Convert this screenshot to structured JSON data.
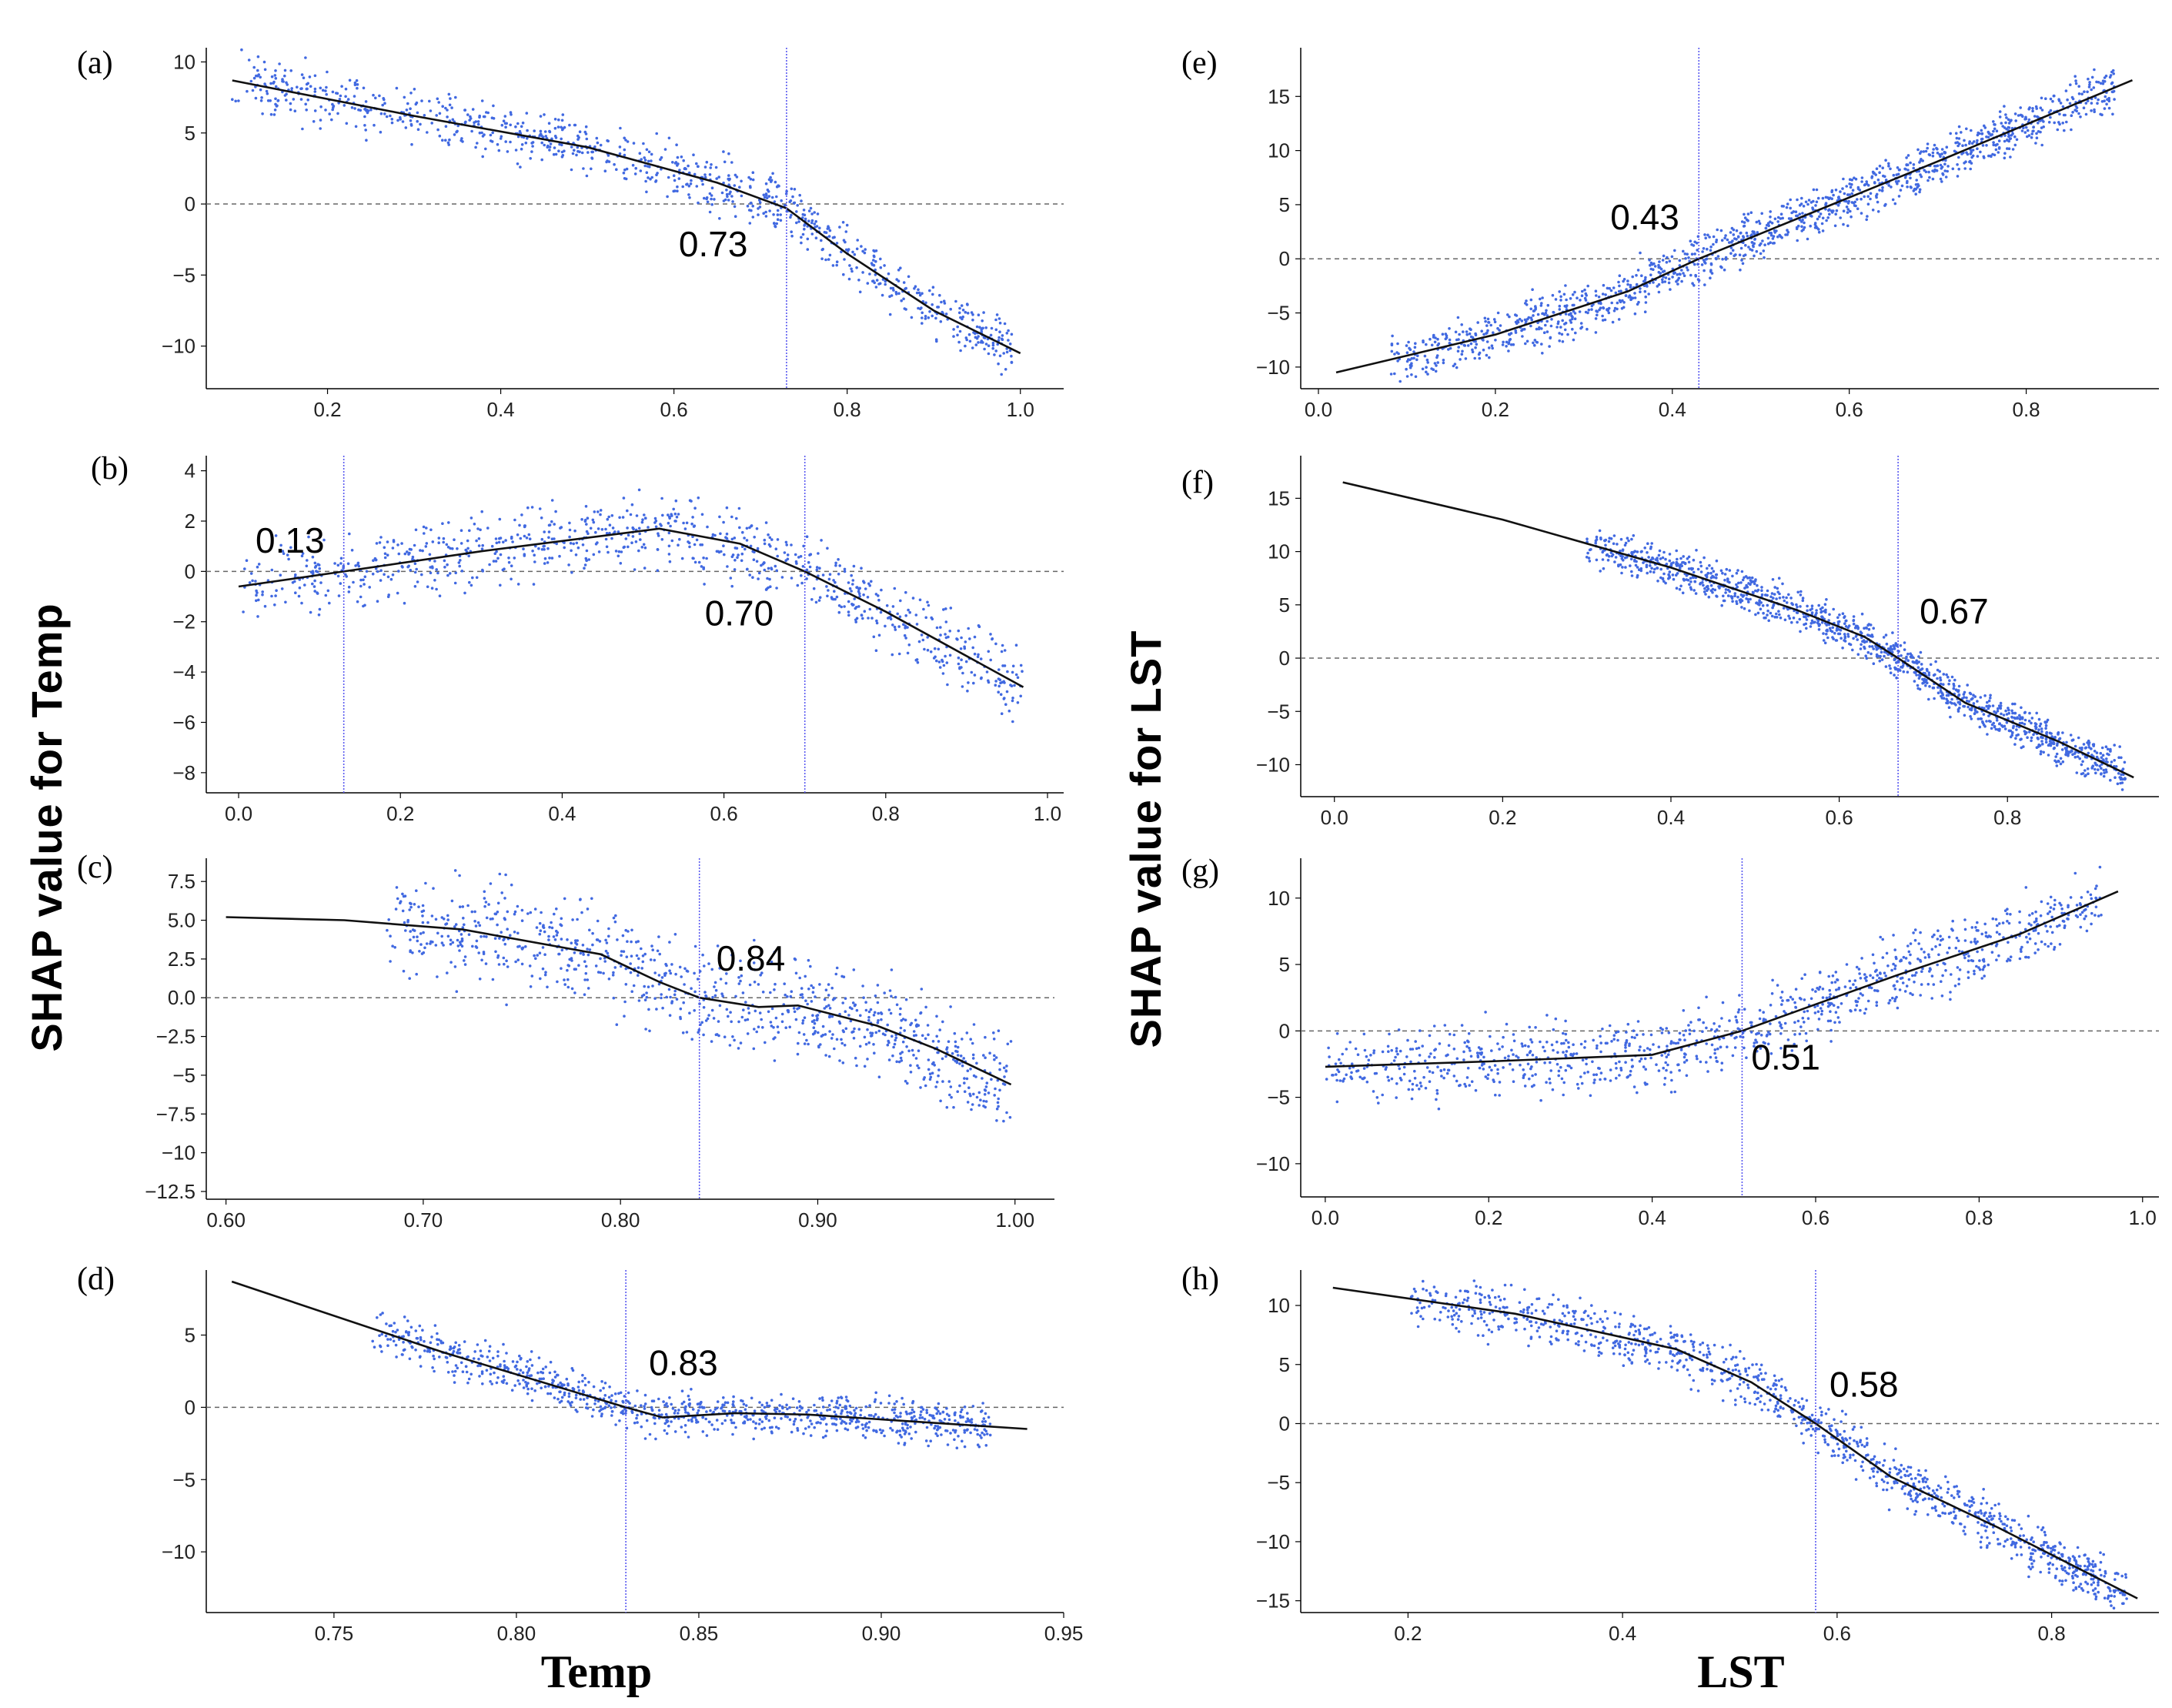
{
  "figure": {
    "left_xlabel": "Temp",
    "right_xlabel": "LST",
    "left_ylabel": "SHAP value for Temp",
    "right_ylabel": "SHAP value for LST",
    "colors": {
      "scatter": "#4169e1",
      "curve": "#111111",
      "threshold_line": "#5a5af0",
      "zero_line": "#666666",
      "axis": "#000000"
    }
  },
  "chart_data": [
    {
      "panel": "(a)",
      "type": "scatter",
      "xlim": [
        0.06,
        1.05
      ],
      "ylim": [
        -13,
        11
      ],
      "xticks": [
        0.2,
        0.4,
        0.6,
        0.8,
        1.0
      ],
      "xtick_labels": [
        "0.2",
        "0.4",
        "0.6",
        "0.8",
        "1.0"
      ],
      "yticks": [
        10,
        5,
        0,
        -5,
        -10
      ],
      "ytick_labels": [
        "10",
        "5",
        "0",
        "−5",
        "−10"
      ],
      "threshold": 0.73,
      "threshold_label": "0.73",
      "label_pos": "left-below",
      "curve": [
        [
          0.09,
          8.7
        ],
        [
          0.3,
          6.2
        ],
        [
          0.5,
          4.0
        ],
        [
          0.65,
          1.5
        ],
        [
          0.73,
          -0.3
        ],
        [
          0.8,
          -3.5
        ],
        [
          0.9,
          -7.5
        ],
        [
          1.0,
          -10.5
        ]
      ],
      "scatter": {
        "n": 950,
        "xrange": [
          0.09,
          0.99
        ],
        "spread": 1.3,
        "seed": 11
      }
    },
    {
      "panel": "(b)",
      "type": "scatter",
      "xlim": [
        -0.04,
        1.02
      ],
      "ylim": [
        -8.8,
        4.6
      ],
      "xticks": [
        0.0,
        0.2,
        0.4,
        0.6,
        0.8,
        1.0
      ],
      "xtick_labels": [
        "0.0",
        "0.2",
        "0.4",
        "0.6",
        "0.8",
        "1.0"
      ],
      "yticks": [
        4,
        2,
        0,
        -2,
        -4,
        -6,
        -8
      ],
      "ytick_labels": [
        "4",
        "2",
        "0",
        "−2",
        "−4",
        "−6",
        "−8"
      ],
      "threshold": [
        0.13,
        0.7
      ],
      "threshold_label": [
        "0.13",
        "0.70"
      ],
      "curve": [
        [
          0.0,
          -0.6
        ],
        [
          0.13,
          0.0
        ],
        [
          0.3,
          0.8
        ],
        [
          0.52,
          1.7
        ],
        [
          0.62,
          1.1
        ],
        [
          0.7,
          0.0
        ],
        [
          0.8,
          -1.6
        ],
        [
          0.97,
          -4.6
        ]
      ],
      "scatter": {
        "n": 900,
        "xrange": [
          0.0,
          0.97
        ],
        "spread": 1.0,
        "seed": 23
      }
    },
    {
      "panel": "(c)",
      "type": "scatter",
      "xlim": [
        0.59,
        1.02
      ],
      "ylim": [
        -13,
        9
      ],
      "xticks": [
        0.6,
        0.7,
        0.8,
        0.9,
        1.0
      ],
      "xtick_labels": [
        "0.60",
        "0.70",
        "0.80",
        "0.90",
        "1.00"
      ],
      "yticks": [
        7.5,
        5.0,
        2.5,
        0.0,
        -2.5,
        -5,
        -7.5,
        -10,
        -12.5
      ],
      "ytick_labels": [
        "7.5",
        "5.0",
        "2.5",
        "0.0",
        "−2.5",
        "−5",
        "−7.5",
        "−10",
        "−12.5"
      ],
      "threshold": 0.84,
      "threshold_label": "0.84",
      "curve": [
        [
          0.6,
          5.2
        ],
        [
          0.66,
          5.0
        ],
        [
          0.72,
          4.4
        ],
        [
          0.79,
          2.8
        ],
        [
          0.82,
          1.0
        ],
        [
          0.84,
          0.0
        ],
        [
          0.87,
          -0.6
        ],
        [
          0.89,
          -0.5
        ],
        [
          0.93,
          -1.8
        ],
        [
          0.96,
          -3.3
        ],
        [
          0.998,
          -5.6
        ]
      ],
      "scatter": {
        "n": 900,
        "xrange": [
          0.68,
          0.998
        ],
        "spread": 2.2,
        "seed": 37
      }
    },
    {
      "panel": "(d)",
      "type": "scatter",
      "xlim": [
        0.715,
        0.95
      ],
      "ylim": [
        -14.2,
        9.5
      ],
      "xticks": [
        0.75,
        0.8,
        0.85,
        0.9,
        0.95
      ],
      "xtick_labels": [
        "0.75",
        "0.80",
        "0.85",
        "0.90",
        "0.95"
      ],
      "yticks": [
        5,
        0,
        -5,
        -10
      ],
      "ytick_labels": [
        "5",
        "0",
        "−5",
        "−10"
      ],
      "threshold": 0.83,
      "threshold_label": "0.83",
      "curve": [
        [
          0.722,
          8.7
        ],
        [
          0.78,
          3.8
        ],
        [
          0.83,
          0.0
        ],
        [
          0.84,
          -0.7
        ],
        [
          0.86,
          -0.4
        ],
        [
          0.88,
          -0.5
        ],
        [
          0.91,
          -1.0
        ],
        [
          0.94,
          -1.5
        ]
      ],
      "scatter": {
        "n": 900,
        "xrange": [
          0.76,
          0.93
        ],
        "spread": 1.0,
        "seed": 41
      }
    },
    {
      "panel": "(e)",
      "type": "scatter",
      "xlim": [
        -0.02,
        0.95
      ],
      "ylim": [
        -12,
        19.5
      ],
      "xticks": [
        0.0,
        0.2,
        0.4,
        0.6,
        0.8
      ],
      "xtick_labels": [
        "0.0",
        "0.2",
        "0.4",
        "0.6",
        "0.8"
      ],
      "yticks": [
        15,
        10,
        5,
        0,
        -5,
        -10
      ],
      "ytick_labels": [
        "15",
        "10",
        "5",
        "0",
        "−5",
        "−10"
      ],
      "threshold": 0.43,
      "threshold_label": "0.43",
      "curve": [
        [
          0.02,
          -10.5
        ],
        [
          0.2,
          -7.0
        ],
        [
          0.35,
          -3.0
        ],
        [
          0.43,
          0.0
        ],
        [
          0.55,
          4.0
        ],
        [
          0.7,
          9.0
        ],
        [
          0.92,
          16.5
        ]
      ],
      "scatter": {
        "n": 1300,
        "xrange": [
          0.08,
          0.9
        ],
        "spread": 1.6,
        "seed": 53
      }
    },
    {
      "panel": "(f)",
      "type": "scatter",
      "xlim": [
        -0.04,
        0.98
      ],
      "ylim": [
        -13,
        19
      ],
      "xticks": [
        0.0,
        0.2,
        0.4,
        0.6,
        0.8
      ],
      "xtick_labels": [
        "0.0",
        "0.2",
        "0.4",
        "0.6",
        "0.8"
      ],
      "yticks": [
        15,
        10,
        5,
        0,
        -5,
        -10
      ],
      "ytick_labels": [
        "15",
        "10",
        "5",
        "0",
        "−5",
        "−10"
      ],
      "threshold": 0.67,
      "threshold_label": "0.67",
      "curve": [
        [
          0.01,
          16.5
        ],
        [
          0.2,
          13.0
        ],
        [
          0.4,
          8.5
        ],
        [
          0.55,
          4.5
        ],
        [
          0.63,
          2.0
        ],
        [
          0.67,
          0.0
        ],
        [
          0.75,
          -4.2
        ],
        [
          0.86,
          -7.8
        ],
        [
          0.95,
          -11.2
        ]
      ],
      "scatter": {
        "n": 1200,
        "xrange": [
          0.3,
          0.94
        ],
        "spread": 1.3,
        "seed": 67
      }
    },
    {
      "panel": "(g)",
      "type": "scatter",
      "xlim": [
        -0.03,
        1.02
      ],
      "ylim": [
        -12.5,
        13
      ],
      "xticks": [
        0.0,
        0.2,
        0.4,
        0.6,
        0.8,
        1.0
      ],
      "xtick_labels": [
        "0.0",
        "0.2",
        "0.4",
        "0.6",
        "0.8",
        "1.0"
      ],
      "yticks": [
        10,
        5,
        0,
        -5,
        -10
      ],
      "ytick_labels": [
        "10",
        "5",
        "0",
        "−5",
        "−10"
      ],
      "threshold": 0.51,
      "threshold_label": "0.51",
      "curve": [
        [
          0.0,
          -2.7
        ],
        [
          0.2,
          -2.3
        ],
        [
          0.4,
          -1.8
        ],
        [
          0.51,
          0.0
        ],
        [
          0.6,
          2.0
        ],
        [
          0.7,
          4.2
        ],
        [
          0.85,
          7.3
        ],
        [
          0.97,
          10.5
        ]
      ],
      "scatter": {
        "n": 1000,
        "xrange": [
          0.0,
          0.95
        ],
        "spread": 1.8,
        "seed": 79
      }
    },
    {
      "panel": "(h)",
      "type": "scatter",
      "xlim": [
        0.1,
        0.9
      ],
      "ylim": [
        -16,
        13
      ],
      "xticks": [
        0.2,
        0.4,
        0.6,
        0.8
      ],
      "xtick_labels": [
        "0.2",
        "0.4",
        "0.6",
        "0.8"
      ],
      "yticks": [
        10,
        5,
        0,
        -5,
        -10,
        -15
      ],
      "ytick_labels": [
        "10",
        "5",
        "0",
        "−5",
        "−10",
        "−15"
      ],
      "threshold": 0.58,
      "threshold_label": "0.58",
      "curve": [
        [
          0.13,
          11.5
        ],
        [
          0.3,
          9.3
        ],
        [
          0.45,
          6.3
        ],
        [
          0.52,
          3.5
        ],
        [
          0.58,
          0.0
        ],
        [
          0.65,
          -4.5
        ],
        [
          0.75,
          -8.8
        ],
        [
          0.88,
          -14.8
        ]
      ],
      "scatter": {
        "n": 1100,
        "xrange": [
          0.2,
          0.87
        ],
        "spread": 1.5,
        "seed": 97
      }
    }
  ]
}
